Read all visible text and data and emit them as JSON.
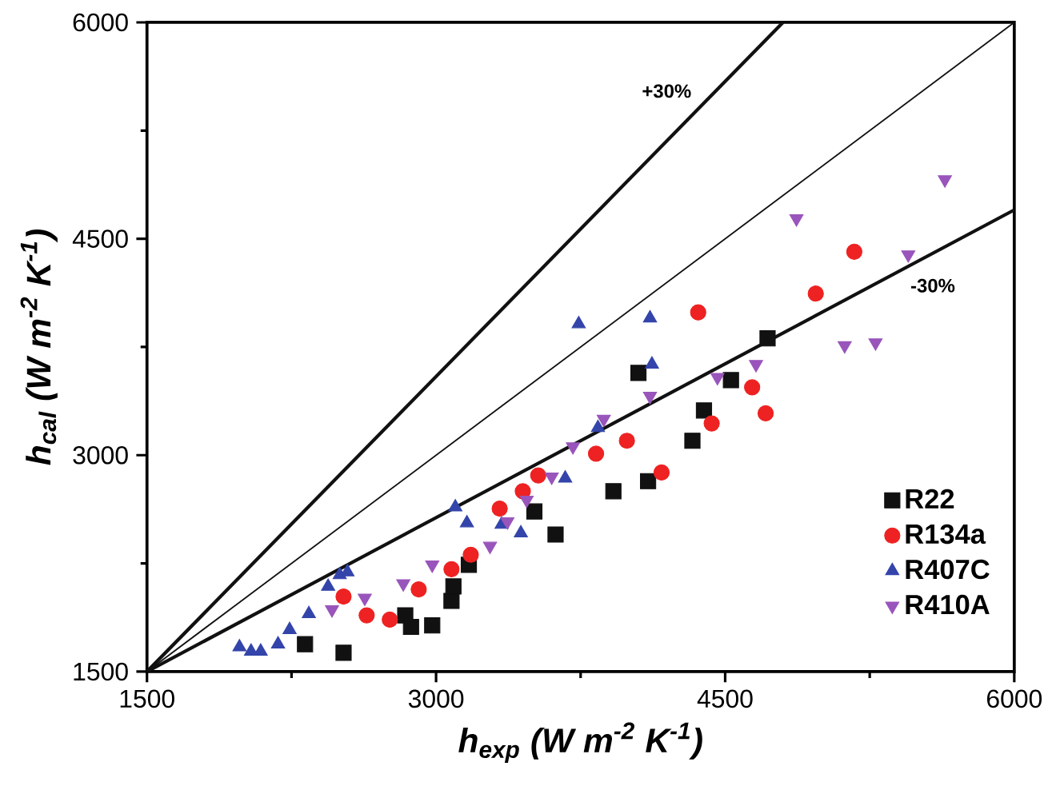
{
  "chart_data": {
    "type": "scatter",
    "xlabel": "h$_{exp}$ (W m$^{-2}$ K$^{-1}$)",
    "ylabel": "h$_{cal}$ (W m$^{-2}$ K$^{-1}$)",
    "xlim": [
      1500,
      6000
    ],
    "ylim": [
      1500,
      6000
    ],
    "xticks": [
      1500,
      3000,
      4500,
      6000
    ],
    "yticks": [
      1500,
      3000,
      4500,
      6000
    ],
    "grid": false,
    "legend": "bottom right",
    "annotations": [
      "+30%",
      "-30%"
    ],
    "series": [
      {
        "type": "line",
        "color": "#111111",
        "marker": "none",
        "line_style": "solid",
        "x": [
          1500,
          6000
        ],
        "values": [
          1500,
          6000
        ]
      },
      {
        "type": "line",
        "color": "#111111",
        "marker": "none",
        "line_style": "solid",
        "x": [
          1500,
          4800
        ],
        "values": [
          1500,
          6000
        ]
      },
      {
        "type": "line",
        "color": "#111111",
        "marker": "none",
        "line_style": "solid",
        "x": [
          1500,
          6000
        ],
        "values": [
          1500,
          4700
        ]
      },
      {
        "name": "R22",
        "color": "#111111",
        "marker": "square",
        "x": [
          2320,
          2520,
          2840,
          2870,
          2980,
          3080,
          3090,
          3170,
          3510,
          3620,
          3920,
          4100,
          4050,
          4330,
          4390,
          4530,
          4720
        ],
        "values": [
          1690,
          1630,
          1890,
          1810,
          1820,
          1990,
          2090,
          2240,
          2610,
          2450,
          2750,
          2820,
          3570,
          3100,
          3310,
          3520,
          3810
        ]
      },
      {
        "name": "R134a",
        "color": "#ee2222",
        "marker": "circle",
        "x": [
          2520,
          2640,
          2760,
          2910,
          3080,
          3180,
          3330,
          3450,
          3530,
          3830,
          3990,
          4170,
          4360,
          4430,
          4640,
          4710,
          4970,
          5170
        ],
        "values": [
          2020,
          1890,
          1860,
          2070,
          2210,
          2310,
          2630,
          2750,
          2860,
          3010,
          3100,
          2880,
          3990,
          3220,
          3470,
          3290,
          4120,
          4410
        ]
      },
      {
        "name": "R407C",
        "color": "#3344aa",
        "marker": "triangle",
        "x": [
          1980,
          2040,
          2090,
          2180,
          2240,
          2340,
          2440,
          2500,
          2540,
          3100,
          3160,
          3340,
          3440,
          3670,
          3840,
          3740,
          4110,
          4120
        ],
        "values": [
          1670,
          1640,
          1640,
          1690,
          1790,
          1900,
          2090,
          2170,
          2190,
          2640,
          2530,
          2520,
          2460,
          2840,
          3190,
          3910,
          3950,
          3630
        ]
      },
      {
        "name": "R410A",
        "color": "#9955bb",
        "x": [
          2460,
          2630,
          2830,
          2980,
          3280,
          3370,
          3470,
          3600,
          3710,
          3870,
          4110,
          4460,
          4660,
          4870,
          5120,
          5280,
          5450,
          5640
        ],
        "values": [
          1930,
          2010,
          2110,
          2240,
          2370,
          2540,
          2690,
          2850,
          3060,
          3250,
          3410,
          3540,
          3630,
          4640,
          3760,
          3780,
          4390,
          4910
        ]
      }
    ]
  }
}
